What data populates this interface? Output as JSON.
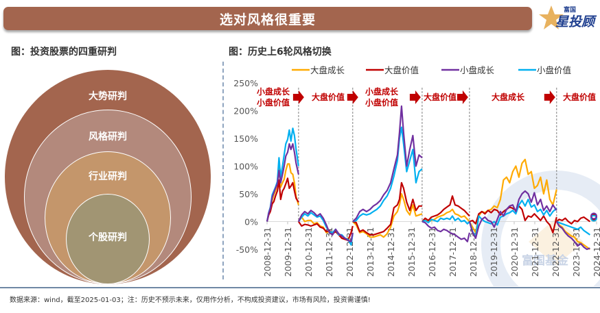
{
  "header": {
    "title": "选对风格很重要",
    "logo_small": "富国",
    "logo_big": "星投顾"
  },
  "left_panel": {
    "title": "图：投资股票的四重研判",
    "circles": [
      {
        "label": "大势研判",
        "color": "#a3654e"
      },
      {
        "label": "风格研判",
        "color": "#b3897c"
      },
      {
        "label": "行业研判",
        "color": "#c4966b"
      },
      {
        "label": "个股研判",
        "color": "#a19573"
      }
    ]
  },
  "right_panel": {
    "title": "图：历史上6轮风格切换"
  },
  "footer": {
    "text": "数据来源：wind，截至2025-01-03；注：历史不预示未来，仅用作分析，不构成投资建议，市场有风险，投资需谨慎!"
  },
  "watermark": "富国基金",
  "chart_data": {
    "type": "line",
    "title": "历史上6轮风格切换",
    "xlabel": "",
    "ylabel": "",
    "ylim": [
      -50,
      250
    ],
    "yticks": [
      "250%",
      "200%",
      "150%",
      "100%",
      "50%",
      "0%",
      "-50%"
    ],
    "ytick_values": [
      250,
      200,
      150,
      100,
      50,
      0,
      -50
    ],
    "xticks": [
      "2008-12-31",
      "2009-12-31",
      "2010-12-31",
      "2011-12-31",
      "2012-12-31",
      "2013-12-31",
      "2014-12-31",
      "2015-12-31",
      "2016-12-31",
      "2017-12-31",
      "2018-12-31",
      "2019-12-31",
      "2020-12-31",
      "2021-12-31",
      "2022-12-31",
      "2023-12-31",
      "2024-12-31"
    ],
    "xlim_years": [
      2008.92,
      2024.92
    ],
    "grid": false,
    "legend": "top",
    "legend_entries": [
      "大盘成长",
      "大盘价值",
      "小盘成长",
      "小盘价值"
    ],
    "colors": {
      "大盘成长": "#ffaa00",
      "大盘价值": "#c00000",
      "小盘成长": "#7030a0",
      "小盘价值": "#00b0f0"
    },
    "phase_dividers": [
      2010.45,
      2013.08,
      2016.45,
      2018.75,
      2022.98
    ],
    "phases": [
      {
        "label_lines": [
          "小盘成长",
          "小盘价值"
        ],
        "year": 2009.05
      },
      {
        "label_lines": [
          "大盘价值"
        ],
        "year": 2010.75
      },
      {
        "label_lines": [
          "小盘成长",
          "小盘价值"
        ],
        "year": 2013.8
      },
      {
        "label_lines": [
          "大盘价值"
        ],
        "year": 2016.55
      },
      {
        "label_lines": [
          "大盘成长"
        ],
        "year": 2019.8
      },
      {
        "label_lines": [
          "大盘价值"
        ],
        "year": 2023.1
      }
    ],
    "segments": [
      {
        "start": 2008.92,
        "end": 2010.45,
        "x": [
          2008.92,
          2009.0,
          2009.08,
          2009.17,
          2009.25,
          2009.33,
          2009.42,
          2009.5,
          2009.58,
          2009.67,
          2009.75,
          2009.83,
          2009.92,
          2010.0,
          2010.08,
          2010.17,
          2010.25,
          2010.33,
          2010.45
        ],
        "series": [
          {
            "name": "大盘成长",
            "values": [
              0,
              14,
              22,
              38,
              48,
              55,
              70,
              98,
              62,
              70,
              76,
              92,
              104,
              104,
              88,
              85,
              70,
              45,
              30
            ]
          },
          {
            "name": "大盘价值",
            "values": [
              0,
              12,
              18,
              32,
              36,
              46,
              55,
              75,
              40,
              55,
              60,
              68,
              78,
              60,
              64,
              70,
              55,
              42,
              35
            ]
          },
          {
            "name": "小盘成长",
            "values": [
              0,
              15,
              24,
              44,
              52,
              60,
              68,
              92,
              70,
              85,
              100,
              118,
              125,
              140,
              130,
              140,
              125,
              105,
              85
            ]
          },
          {
            "name": "小盘价值",
            "values": [
              0,
              16,
              26,
              48,
              55,
              62,
              72,
              115,
              80,
              100,
              120,
              140,
              148,
              165,
              145,
              168,
              155,
              130,
              100
            ]
          }
        ]
      },
      {
        "start": 2010.45,
        "end": 2013.08,
        "x": [
          2010.45,
          2010.6,
          2010.75,
          2010.9,
          2011.05,
          2011.2,
          2011.35,
          2011.5,
          2011.65,
          2011.8,
          2011.95,
          2012.1,
          2012.25,
          2012.4,
          2012.55,
          2012.7,
          2012.85,
          2013.0,
          2013.08
        ],
        "series": [
          {
            "name": "大盘成长",
            "values": [
              0,
              8,
              0,
              2,
              2,
              -4,
              -2,
              -8,
              -10,
              -20,
              -18,
              -22,
              -18,
              -24,
              -30,
              -32,
              -30,
              -40,
              -20
            ]
          },
          {
            "name": "大盘价值",
            "values": [
              0,
              -8,
              -5,
              -6,
              -8,
              -6,
              -4,
              -10,
              -12,
              -18,
              -16,
              -22,
              -18,
              -24,
              -30,
              -32,
              -34,
              -20,
              -8
            ]
          },
          {
            "name": "小盘成长",
            "values": [
              0,
              12,
              18,
              14,
              20,
              16,
              10,
              14,
              6,
              -6,
              -20,
              -24,
              -14,
              -22,
              -26,
              -30,
              -34,
              -36,
              -20
            ]
          },
          {
            "name": "小盘价值",
            "values": [
              0,
              8,
              14,
              10,
              16,
              12,
              8,
              10,
              2,
              -10,
              -18,
              -20,
              -14,
              -24,
              -24,
              -30,
              -32,
              -42,
              -22
            ]
          }
        ]
      },
      {
        "start": 2013.08,
        "end": 2016.45,
        "x": [
          2013.08,
          2013.25,
          2013.42,
          2013.58,
          2013.75,
          2013.92,
          2014.08,
          2014.25,
          2014.42,
          2014.58,
          2014.75,
          2014.92,
          2015.08,
          2015.25,
          2015.35,
          2015.45,
          2015.55,
          2015.7,
          2015.85,
          2016.0,
          2016.15,
          2016.3,
          2016.45
        ],
        "series": [
          {
            "name": "大盘成长",
            "values": [
              0,
              -6,
              -20,
              -18,
              -22,
              -28,
              -28,
              -26,
              -24,
              -28,
              -22,
              -10,
              10,
              18,
              30,
              50,
              40,
              20,
              12,
              30,
              10,
              12,
              14
            ]
          },
          {
            "name": "大盘价值",
            "values": [
              0,
              -2,
              -18,
              -15,
              -20,
              -24,
              -24,
              -22,
              -20,
              -18,
              -12,
              -5,
              25,
              30,
              40,
              70,
              60,
              35,
              20,
              40,
              20,
              28,
              28
            ]
          },
          {
            "name": "小盘成长",
            "values": [
              0,
              6,
              18,
              22,
              18,
              22,
              28,
              32,
              38,
              48,
              56,
              70,
              95,
              120,
              160,
              208,
              160,
              100,
              130,
              155,
              100,
              120,
              115
            ]
          },
          {
            "name": "小盘价值",
            "values": [
              0,
              2,
              10,
              14,
              12,
              14,
              18,
              22,
              28,
              38,
              46,
              60,
              82,
              110,
              150,
              170,
              140,
              90,
              110,
              130,
              70,
              90,
              95
            ]
          }
        ]
      },
      {
        "start": 2016.45,
        "end": 2018.75,
        "x": [
          2016.45,
          2016.6,
          2016.75,
          2016.9,
          2017.05,
          2017.2,
          2017.35,
          2017.5,
          2017.65,
          2017.8,
          2017.92,
          2018.05,
          2018.2,
          2018.35,
          2018.5,
          2018.65,
          2018.75
        ],
        "series": [
          {
            "name": "大盘成长",
            "values": [
              0,
              4,
              0,
              2,
              4,
              8,
              10,
              12,
              16,
              18,
              22,
              14,
              12,
              8,
              10,
              4,
              0
            ]
          },
          {
            "name": "大盘价值",
            "values": [
              0,
              6,
              2,
              8,
              10,
              12,
              16,
              22,
              26,
              30,
              46,
              30,
              28,
              24,
              20,
              14,
              10
            ]
          },
          {
            "name": "小盘成长",
            "values": [
              0,
              -2,
              -8,
              -12,
              -10,
              -16,
              -18,
              -14,
              -16,
              -20,
              -22,
              -24,
              -28,
              -32,
              -30,
              -36,
              -20
            ]
          },
          {
            "name": "小盘价值",
            "values": [
              0,
              2,
              -2,
              4,
              2,
              0,
              6,
              4,
              6,
              4,
              10,
              2,
              6,
              0,
              2,
              -4,
              0
            ]
          }
        ]
      },
      {
        "start": 2018.75,
        "end": 2022.98,
        "x": [
          2018.75,
          2018.9,
          2019.05,
          2019.2,
          2019.35,
          2019.5,
          2019.65,
          2019.8,
          2019.95,
          2020.1,
          2020.25,
          2020.4,
          2020.55,
          2020.7,
          2020.85,
          2021.0,
          2021.15,
          2021.3,
          2021.45,
          2021.6,
          2021.75,
          2021.9,
          2022.05,
          2022.2,
          2022.35,
          2022.5,
          2022.65,
          2022.8,
          2022.98
        ],
        "series": [
          {
            "name": "大盘成长",
            "values": [
              0,
              -10,
              -20,
              10,
              18,
              16,
              20,
              22,
              28,
              25,
              40,
              75,
              80,
              70,
              90,
              100,
              80,
              105,
              112,
              85,
              90,
              60,
              65,
              80,
              50,
              75,
              40,
              30,
              58
            ]
          },
          {
            "name": "大盘价值",
            "values": [
              0,
              2,
              -4,
              14,
              18,
              14,
              20,
              16,
              22,
              20,
              12,
              18,
              22,
              26,
              24,
              20,
              28,
              22,
              2,
              10,
              8,
              14,
              8,
              2,
              10,
              0,
              -6,
              -20,
              8
            ]
          },
          {
            "name": "小盘成长",
            "values": [
              0,
              -20,
              -30,
              -8,
              4,
              8,
              2,
              0,
              -10,
              4,
              18,
              10,
              22,
              28,
              30,
              18,
              40,
              50,
              55,
              50,
              35,
              52,
              30,
              40,
              20,
              28,
              18,
              30,
              20
            ]
          },
          {
            "name": "小盘价值",
            "values": [
              0,
              -18,
              -28,
              10,
              4,
              0,
              -2,
              -4,
              0,
              -6,
              8,
              10,
              14,
              16,
              20,
              14,
              30,
              38,
              28,
              40,
              26,
              30,
              18,
              22,
              12,
              20,
              10,
              18,
              24
            ]
          }
        ]
      },
      {
        "start": 2022.98,
        "end": 2024.92,
        "x": [
          2022.98,
          2023.1,
          2023.25,
          2023.4,
          2023.55,
          2023.7,
          2023.85,
          2024.0,
          2024.15,
          2024.3,
          2024.45,
          2024.6
        ],
        "series": [
          {
            "name": "大盘成长",
            "values": [
              0,
              -6,
              -10,
              -18,
              -22,
              -26,
              -28,
              -36,
              -38,
              -42,
              -46,
              -50
            ]
          },
          {
            "name": "大盘价值",
            "values": [
              0,
              4,
              2,
              6,
              0,
              -4,
              2,
              0,
              6,
              8,
              4,
              0
            ]
          },
          {
            "name": "小盘成长",
            "values": [
              0,
              -8,
              -12,
              -20,
              -26,
              -30,
              -36,
              -44,
              -40,
              -46,
              -50,
              -48
            ]
          },
          {
            "name": "小盘价值",
            "values": [
              0,
              -2,
              -4,
              -6,
              -8,
              -10,
              -12,
              -14,
              -10,
              -16,
              -20,
              -24
            ]
          }
        ]
      },
      {
        "start": 2024.92,
        "end": 2024.92,
        "x": [
          2024.92
        ],
        "series": [
          {
            "name": "大盘成长",
            "values": [
              6
            ]
          },
          {
            "name": "大盘价值",
            "values": [
              8
            ]
          },
          {
            "name": "小盘成长",
            "values": [
              10
            ]
          },
          {
            "name": "小盘价值",
            "values": [
              6
            ]
          }
        ]
      }
    ]
  }
}
